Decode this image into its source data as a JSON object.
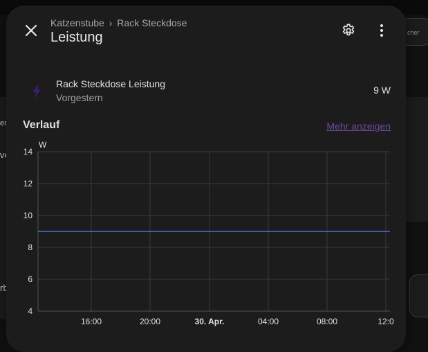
{
  "background": {
    "left_labels": [
      "er",
      "ve",
      "rb"
    ],
    "pill_text": "cher"
  },
  "dialog": {
    "breadcrumb_area": "Katzenstube",
    "breadcrumb_separator": "›",
    "breadcrumb_device": "Rack Steckdose",
    "title": "Leistung",
    "close_icon": "close-icon",
    "settings_icon": "gear-icon",
    "menu_icon": "dots-vertical-icon"
  },
  "entity": {
    "icon": "flash-icon",
    "icon_color": "#3a1e6e",
    "name": "Rack Steckdose Leistung",
    "last_changed": "Vorgestern",
    "value": "9 W"
  },
  "history": {
    "title": "Verlauf",
    "more_label": "Mehr anzeigen",
    "link_color": "#6b4a9a"
  },
  "chart_data": {
    "type": "line",
    "ylabel": "W",
    "ylim": [
      4,
      14
    ],
    "yticks": [
      4,
      6,
      8,
      10,
      12,
      14
    ],
    "xticks": [
      {
        "label": "16:00",
        "bold": false
      },
      {
        "label": "20:00",
        "bold": false
      },
      {
        "label": "30. Apr.",
        "bold": true
      },
      {
        "label": "04:00",
        "bold": false
      },
      {
        "label": "08:00",
        "bold": false
      },
      {
        "label": "12:0",
        "bold": false
      }
    ],
    "series": [
      {
        "values": [
          9,
          9
        ],
        "color": "#4f6fd6"
      }
    ],
    "grid": true,
    "line_color": "#4f6fd6"
  }
}
